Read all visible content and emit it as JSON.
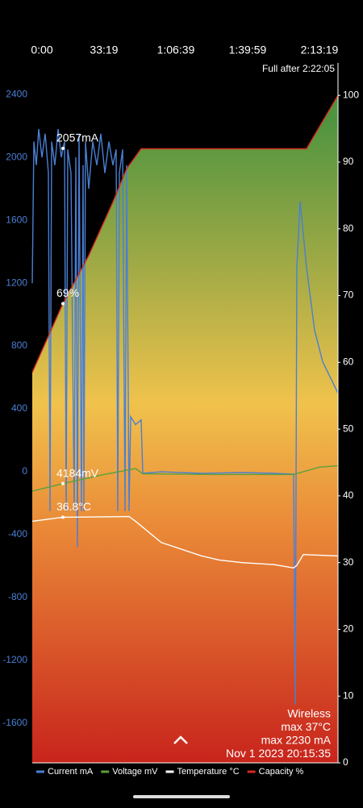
{
  "chart_data": {
    "type": "line",
    "annotations": [
      "Full after 2:22:05"
    ],
    "info": [
      "Wireless",
      "max 37°C",
      "max 2230 mA",
      "Nov 1 2023 20:15:35"
    ],
    "xlim": [
      0,
      8517
    ],
    "xticks": [
      {
        "value": 0,
        "label": "0:00"
      },
      {
        "value": 1999,
        "label": "33:19"
      },
      {
        "value": 3999,
        "label": "1:06:39"
      },
      {
        "value": 5999,
        "label": "1:39:59"
      },
      {
        "value": 7999,
        "label": "2:13:19"
      }
    ],
    "ylim": [
      -1851,
      2462
    ],
    "yticks": [
      -1600,
      -1200,
      -800,
      -400,
      0,
      400,
      800,
      1200,
      1600,
      2000,
      2400
    ],
    "y2lim": [
      0,
      101.6
    ],
    "y2ticks": [
      0,
      10,
      20,
      30,
      40,
      50,
      60,
      70,
      80,
      90,
      100
    ],
    "series": [
      {
        "name": "Current mA",
        "color": "#4a7fd4",
        "x": [
          0,
          45,
          112,
          180,
          270,
          360,
          449,
          494,
          539,
          629,
          719,
          809,
          854,
          899,
          944,
          989,
          1079,
          1168,
          1213,
          1258,
          1303,
          1371,
          1416,
          1438,
          1483,
          1573,
          1685,
          1798,
          1910,
          2022,
          2135,
          2247,
          2337,
          2382,
          2427,
          2517,
          2584,
          2629,
          2696,
          2741,
          2876,
          3034,
          3078,
          3595,
          4719,
          5843,
          6741,
          7281,
          7326,
          7371,
          7461,
          7640,
          7865,
          8090,
          8517
        ],
        "values": [
          1200,
          2100,
          1950,
          2180,
          2000,
          2150,
          1900,
          -250,
          2100,
          1950,
          2180,
          2000,
          2057,
          2100,
          -250,
          2050,
          1900,
          -250,
          2000,
          -480,
          2150,
          -250,
          1950,
          -250,
          2100,
          1800,
          2100,
          1950,
          2150,
          1900,
          2100,
          1950,
          2050,
          -250,
          1900,
          2050,
          -250,
          1950,
          -250,
          350,
          300,
          330,
          -10,
          0,
          -10,
          -5,
          -10,
          -15,
          -1480,
          1300,
          1720,
          1300,
          900,
          700,
          500
        ],
        "value_labels": [
          null,
          null,
          null,
          null,
          null,
          null,
          null,
          null,
          null,
          null,
          null,
          null,
          "2057mA",
          null,
          null,
          null,
          null,
          null,
          null,
          null,
          null,
          null,
          null,
          null,
          null,
          null,
          null,
          null,
          null,
          null,
          null,
          null,
          null,
          null,
          null,
          null,
          null,
          null,
          null,
          null,
          null,
          null,
          null,
          null,
          null,
          null,
          null,
          null,
          null,
          null,
          null,
          null,
          null,
          null,
          null
        ]
      },
      {
        "name": "Voltage mV",
        "color": "#5aa03c",
        "axis": "y2",
        "x": [
          0,
          854,
          2000,
          2876,
          3078,
          5000,
          7281,
          8000,
          8517
        ],
        "values": [
          40.7,
          41.84,
          43.2,
          44.1,
          43.3,
          43.2,
          43.2,
          44.3,
          44.5
        ],
        "value_labels": [
          null,
          "4184mV",
          null,
          null,
          null,
          null,
          null,
          null,
          null
        ]
      },
      {
        "name": "Temperature °C",
        "color": "#ffffff",
        "axis": "y2",
        "x": [
          0,
          854,
          2696,
          2876,
          3595,
          4719,
          5200,
          5843,
          6741,
          7281,
          7371,
          7550,
          8517
        ],
        "values": [
          36.2,
          36.8,
          36.9,
          36.2,
          33,
          31,
          30.4,
          30,
          29.7,
          29.2,
          29.6,
          31.2,
          31
        ],
        "value_labels": [
          null,
          "36.8°C",
          null,
          null,
          null,
          null,
          null,
          null,
          null,
          null,
          null,
          null,
          null
        ]
      },
      {
        "name": "Capacity %",
        "color": "#d42a1e",
        "axis": "y2",
        "x": [
          0,
          854,
          1573,
          2247,
          2629,
          3034,
          7640,
          8517
        ],
        "values": [
          58.5,
          68.8,
          76,
          84,
          89,
          92,
          92,
          100
        ],
        "value_labels": [
          null,
          "69%",
          null,
          null,
          null,
          null,
          null,
          null
        ]
      }
    ]
  }
}
